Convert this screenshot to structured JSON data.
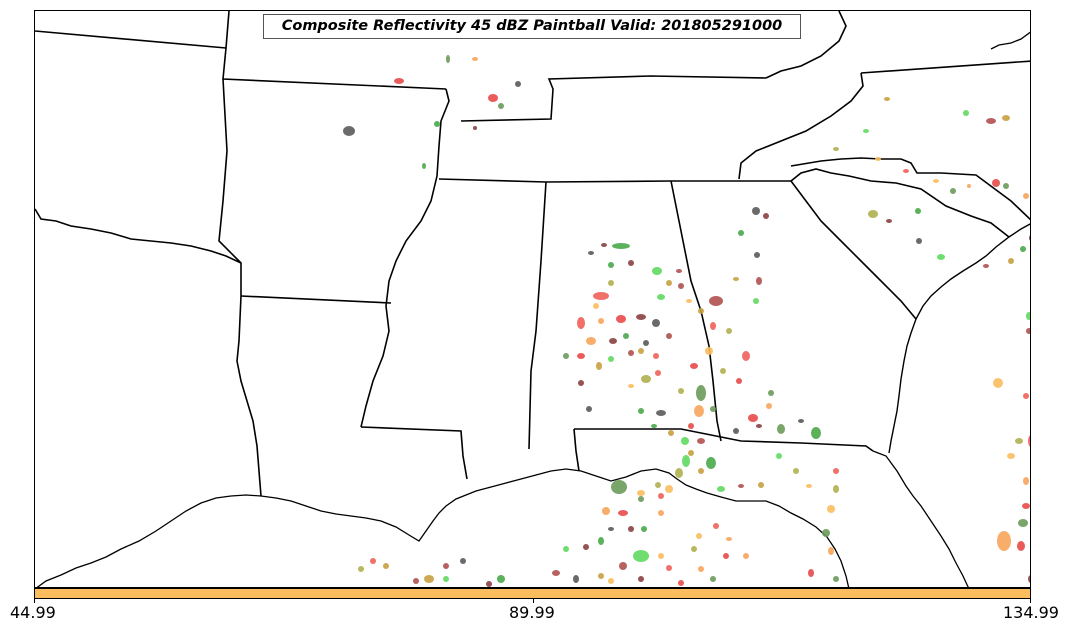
{
  "title": "Composite Reflectivity 45 dBZ Paintball Valid: 201805291000",
  "colorbar": {
    "color": "#fcbd5f",
    "ticks": [
      "44.99",
      "89.99",
      "134.99"
    ]
  },
  "paint_colors": [
    "#e84a4a",
    "#f0605a",
    "#b05050",
    "#8a4040",
    "#f7a55a",
    "#fcbd5f",
    "#5fd95f",
    "#4aa84a",
    "#6a9a5a",
    "#b0b050",
    "#c8a040",
    "#5a5a5a"
  ]
}
